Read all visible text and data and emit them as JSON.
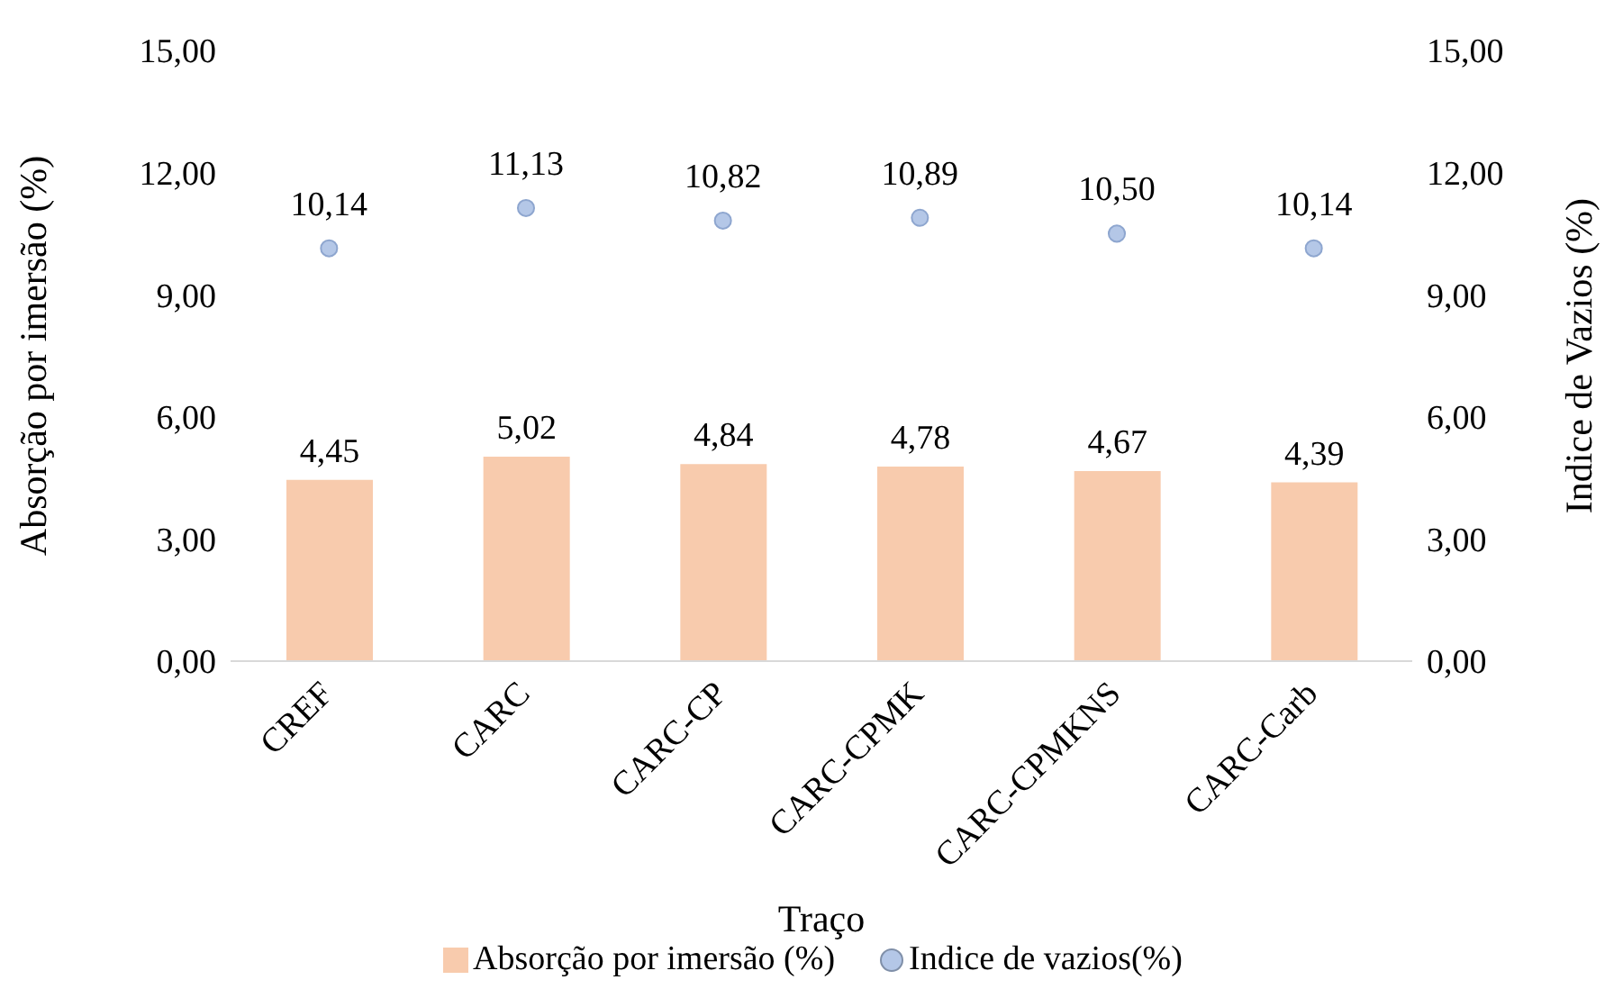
{
  "chart_data": {
    "type": "bar",
    "xlabel": "Traço",
    "ylabel": "Absorção por imersão (%)",
    "y2label": "Indice de Vazios (%)",
    "categories": [
      "CREF",
      "CARC",
      "CARC-CP",
      "CARC-CPMK",
      "CARC-CPMKNS",
      "CARC-Carb"
    ],
    "series": [
      {
        "name": "Absorção por imersão (%)",
        "color": "#f8cbad",
        "values": [
          4.45,
          5.02,
          4.84,
          4.78,
          4.67,
          4.39
        ],
        "value_labels": [
          "4,45",
          "5,02",
          "4,84",
          "4,78",
          "4,67",
          "4,39"
        ]
      },
      {
        "name": "Indice de vazios(%)",
        "type": "scatter",
        "axis": "y2",
        "color": "#b4c7e7",
        "values": [
          10.14,
          11.13,
          10.82,
          10.89,
          10.5,
          10.14
        ],
        "value_labels": [
          "10,14",
          "11,13",
          "10,82",
          "10,89",
          "10,50",
          "10,14"
        ]
      }
    ],
    "ylim": [
      0,
      15
    ],
    "yticks": [
      {
        "value": 0,
        "label": "0,00"
      },
      {
        "value": 3,
        "label": "3,00"
      },
      {
        "value": 6,
        "label": "6,00"
      },
      {
        "value": 9,
        "label": "9,00"
      },
      {
        "value": 12,
        "label": "12,00"
      },
      {
        "value": 15,
        "label": "15,00"
      }
    ],
    "y2lim": [
      0,
      15
    ],
    "y2ticks": [
      {
        "value": 0,
        "label": "0,00"
      },
      {
        "value": 3,
        "label": "3,00"
      },
      {
        "value": 6,
        "label": "6,00"
      },
      {
        "value": 9,
        "label": "9,00"
      },
      {
        "value": 12,
        "label": "12,00"
      },
      {
        "value": 15,
        "label": "15,00"
      }
    ],
    "grid": false,
    "legend": "bottom",
    "marker": "circle"
  }
}
